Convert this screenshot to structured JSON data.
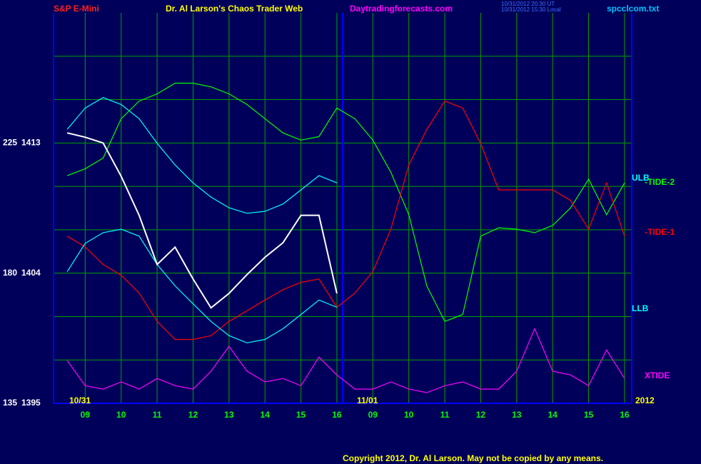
{
  "chart_data": {
    "type": "line",
    "header": {
      "symbol": "S&P E-Mini",
      "title": "Dr. Al Larson's Chaos Trader Web",
      "site": "Daytradingforecasts.com",
      "time_ut": "10/31/2012 20:30 UT",
      "time_local": "10/31/2012 15:30 Local",
      "file": "spcclcom.txt"
    },
    "dates": [
      "10/31",
      "11/01",
      "2012"
    ],
    "copyright": "Copyright 2012, Dr. Al Larson. May not be copied by any means.",
    "xlim": [
      0.12,
      16.2
    ],
    "xticks": [
      {
        "value": 1,
        "label": "09"
      },
      {
        "value": 2,
        "label": "10"
      },
      {
        "value": 3,
        "label": "11"
      },
      {
        "value": 4,
        "label": "12"
      },
      {
        "value": 5,
        "label": "13"
      },
      {
        "value": 6,
        "label": "14"
      },
      {
        "value": 7,
        "label": "15"
      },
      {
        "value": 8,
        "label": "16"
      },
      {
        "value": 9,
        "label": "09"
      },
      {
        "value": 10,
        "label": "10"
      },
      {
        "value": 11,
        "label": "11"
      },
      {
        "value": 12,
        "label": "12"
      },
      {
        "value": 13,
        "label": "13"
      },
      {
        "value": 14,
        "label": "14"
      },
      {
        "value": 15,
        "label": "15"
      },
      {
        "value": 16,
        "label": "16"
      }
    ],
    "ylim": [
      135,
      270
    ],
    "yticks": [
      135,
      180,
      225
    ],
    "y_minor_ticks": [
      150,
      165,
      195,
      210,
      240,
      255
    ],
    "y2lim": [
      1395,
      1422
    ],
    "y2ticks": [
      1395,
      1404,
      1413
    ],
    "grid": true,
    "x": [
      0.5,
      1,
      1.5,
      2,
      2.5,
      3,
      3.5,
      4,
      4.5,
      5,
      5.5,
      6,
      6.5,
      7,
      7.5,
      8,
      8.5,
      9,
      9.5,
      10,
      10.5,
      11,
      11.5,
      12,
      12.5,
      13,
      13.5,
      14,
      14.5,
      15,
      15.5,
      16
    ],
    "price": {
      "color": "#ffffff",
      "axis": "y2",
      "values": [
        1413.7,
        1413.4,
        1413.0,
        1410.7,
        1408.0,
        1404.6,
        1405.8,
        1403.6,
        1401.6,
        1402.6,
        1403.9,
        1405.1,
        1406.1,
        1408.0,
        1408.0,
        1402.6,
        null,
        null,
        null,
        null,
        null,
        null,
        null,
        null,
        null,
        null,
        null,
        null,
        null,
        null,
        null,
        null
      ]
    },
    "series": [
      {
        "name": "ULB",
        "color": "#00ffff",
        "values": [
          229.7,
          237.1,
          240.7,
          238.3,
          233.4,
          224.9,
          217.4,
          211.2,
          206.3,
          202.6,
          200.7,
          201.4,
          203.9,
          208.8,
          213.7,
          211.2,
          null,
          null,
          null,
          null,
          null,
          null,
          null,
          null,
          null,
          null,
          null,
          null,
          null,
          null,
          null,
          null
        ]
      },
      {
        "name": "-TIDE-2",
        "color": "#00ff00",
        "values": [
          213.7,
          216.1,
          219.8,
          233.4,
          239.5,
          242.0,
          245.7,
          245.7,
          244.4,
          242.0,
          238.3,
          233.4,
          228.5,
          226.0,
          227.2,
          237.1,
          233.4,
          226.0,
          214.9,
          200.2,
          175.6,
          163.3,
          165.7,
          192.8,
          195.7,
          195.2,
          194.0,
          196.5,
          202.6,
          212.5,
          200.2,
          211.2
        ]
      },
      {
        "name": "-TIDE-1",
        "color": "#ff0000",
        "values": [
          192.8,
          189.1,
          183.0,
          179.3,
          173.1,
          163.3,
          157.1,
          157.1,
          158.4,
          163.3,
          167.0,
          170.7,
          174.3,
          176.8,
          178.0,
          168.2,
          173.1,
          180.5,
          195.2,
          217.4,
          229.7,
          239.5,
          237.1,
          224.8,
          208.8,
          208.8,
          208.8,
          208.8,
          205.1,
          195.2,
          211.2,
          192.8
        ]
      },
      {
        "name": "LLB",
        "color": "#00ffff",
        "values": [
          180.5,
          190.3,
          194.0,
          195.2,
          192.8,
          183.0,
          175.6,
          169.4,
          163.3,
          158.4,
          155.9,
          157.1,
          160.8,
          165.7,
          170.7,
          168.2,
          null,
          null,
          null,
          null,
          null,
          null,
          null,
          null,
          null,
          null,
          null,
          null,
          null,
          null,
          null,
          null
        ]
      },
      {
        "name": "XTIDE",
        "color": "#ff00ff",
        "values": [
          149.8,
          141.1,
          139.9,
          142.4,
          139.9,
          143.6,
          141.1,
          139.9,
          146.1,
          154.7,
          146.1,
          142.4,
          143.6,
          141.1,
          151.0,
          144.8,
          139.9,
          139.9,
          142.4,
          139.9,
          138.7,
          141.1,
          142.4,
          139.9,
          139.9,
          146.1,
          160.8,
          146.1,
          144.8,
          141.1,
          153.4,
          143.6
        ]
      }
    ]
  }
}
